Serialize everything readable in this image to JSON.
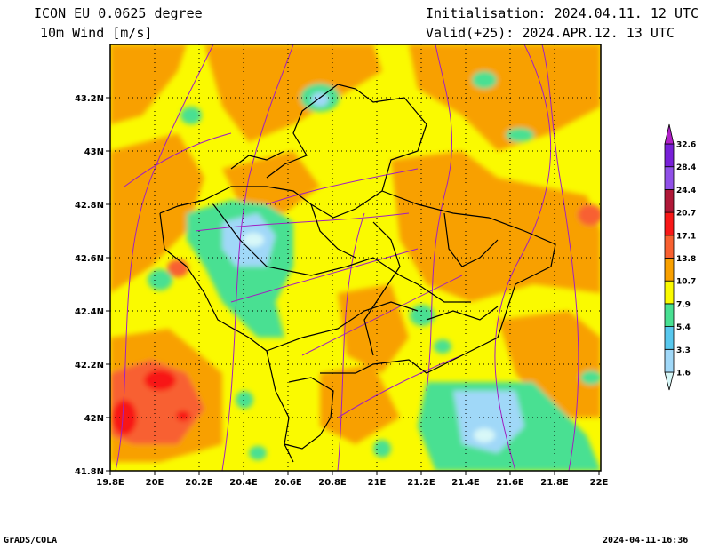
{
  "header": {
    "model_title": "ICON EU 0.0625 degree",
    "field_title": "10m Wind [m/s]",
    "initialisation": "Initialisation: 2024.04.11. 12 UTC",
    "valid": "Valid(+25): 2024.APR.12. 13 UTC"
  },
  "axes": {
    "x_ticks": [
      "19.8E",
      "20E",
      "20.2E",
      "20.4E",
      "20.6E",
      "20.8E",
      "21E",
      "21.2E",
      "21.4E",
      "21.6E",
      "21.8E",
      "22E"
    ],
    "y_ticks": [
      "43.2N",
      "43N",
      "42.8N",
      "42.6N",
      "42.4N",
      "42.2N",
      "42N",
      "41.8N"
    ]
  },
  "legend": {
    "labels": [
      "1.6",
      "3.3",
      "5.4",
      "7.9",
      "10.7",
      "13.8",
      "17.1",
      "20.7",
      "24.4",
      "28.4",
      "32.6"
    ],
    "colors": [
      "#d8f8f8",
      "#a0d8f8",
      "#58c8ee",
      "#48e092",
      "#fafa00",
      "#f8a000",
      "#f86030",
      "#f81818",
      "#b01838",
      "#9050e8",
      "#7820d8",
      "#b020c8"
    ]
  },
  "footer": {
    "left": "GrADS/COLA",
    "right": "2024-04-11-16:36"
  },
  "colors": {
    "yellow": "#fafa00",
    "orange": "#f8a000",
    "red_orange": "#f86030",
    "red": "#f81818",
    "green": "#48e092",
    "light_blue": "#a0d8f8",
    "cyan": "#58c8ee",
    "streamline": "#a020c0"
  }
}
